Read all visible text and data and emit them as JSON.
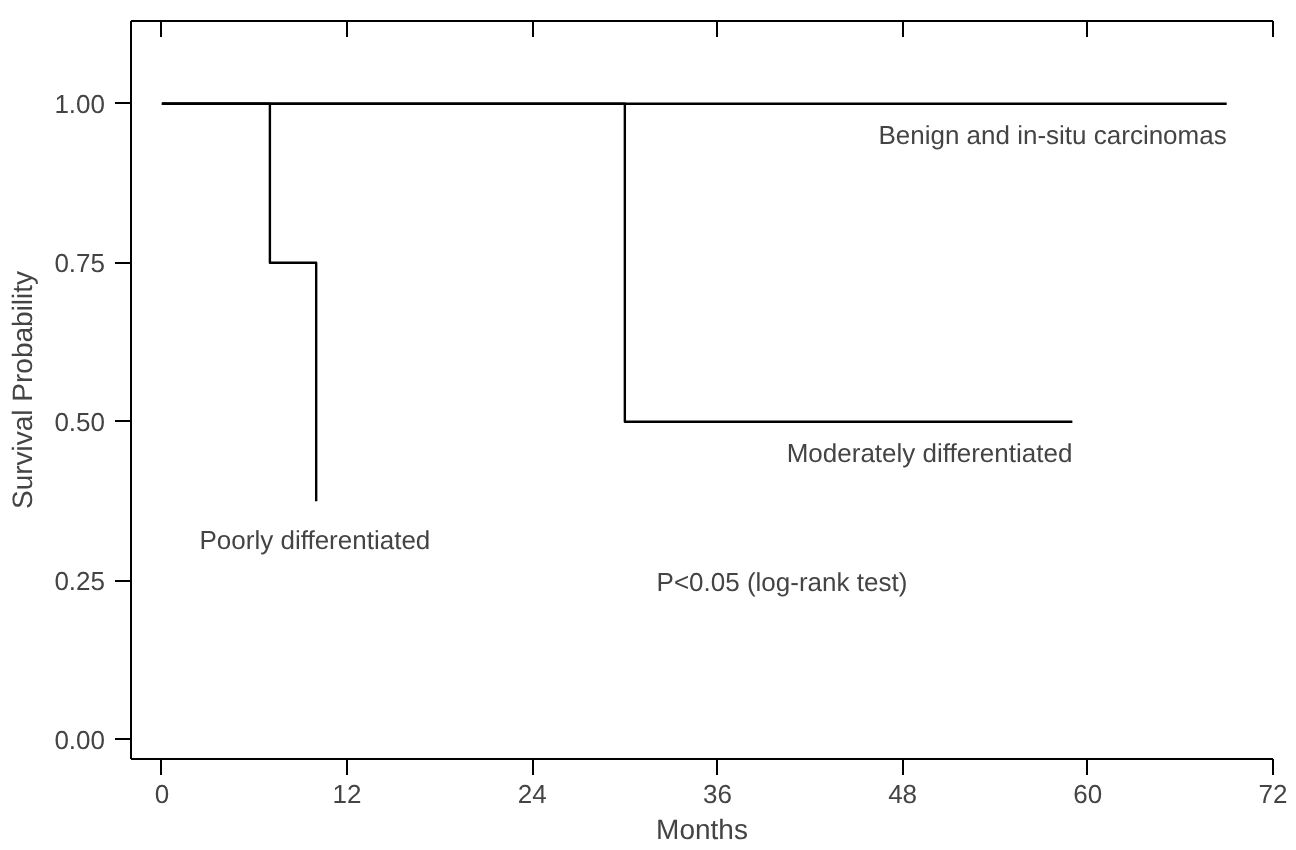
{
  "chart_data": {
    "type": "step",
    "xlabel": "Months",
    "ylabel": "Survival Probability",
    "xlim": [
      -2,
      72
    ],
    "ylim": [
      -0.03,
      1.13
    ],
    "xticks": [
      0,
      12,
      24,
      36,
      48,
      60,
      72
    ],
    "yticks": [
      {
        "value": 0,
        "label": "0.00"
      },
      {
        "value": 0.25,
        "label": "0.25"
      },
      {
        "value": 0.5,
        "label": "0.50"
      },
      {
        "value": 0.75,
        "label": "0.75"
      },
      {
        "value": 1,
        "label": "1.00"
      }
    ],
    "grid": false,
    "legend": false,
    "series": [
      {
        "name": "Benign and in-situ carcinomas",
        "color": "#000000",
        "x": [
          0,
          69
        ],
        "values": [
          1,
          1
        ]
      },
      {
        "name": "Moderately differentiated",
        "color": "#000000",
        "x": [
          0,
          30,
          59
        ],
        "values": [
          1,
          0.5,
          0.5
        ]
      },
      {
        "name": "Poorly differentiated",
        "color": "#000000",
        "x": [
          0,
          7,
          10,
          10
        ],
        "values": [
          1,
          0.75,
          0.75,
          0.375
        ]
      }
    ],
    "annotations": [
      "P<0.05 (log-rank test)"
    ]
  }
}
